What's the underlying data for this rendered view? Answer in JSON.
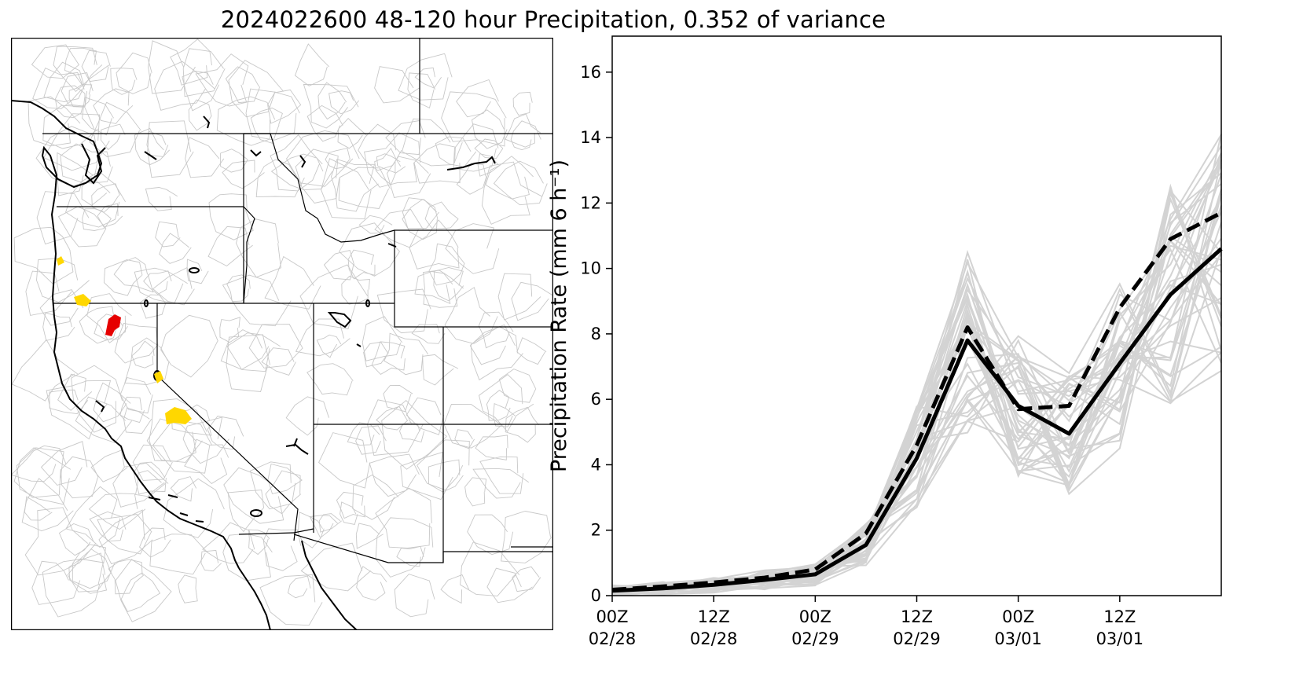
{
  "figure": {
    "title": "2024022600 48-120 hour Precipitation, 0.352 of variance"
  },
  "map": {
    "highlight_colors": {
      "red": "#e60000",
      "yellow": "#ffd700"
    }
  },
  "chart_data": {
    "type": "line",
    "ylabel": "Precipitation Rate (mm 6 h⁻¹)",
    "ylim": [
      0,
      17.1
    ],
    "yticks": [
      0,
      2,
      4,
      6,
      8,
      10,
      12,
      14,
      16
    ],
    "xlim_hours": [
      0,
      72
    ],
    "xticks": [
      {
        "hour": 0,
        "line1": "00Z",
        "line2": "02/28"
      },
      {
        "hour": 12,
        "line1": "12Z",
        "line2": "02/28"
      },
      {
        "hour": 24,
        "line1": "00Z",
        "line2": "02/29"
      },
      {
        "hour": 36,
        "line1": "12Z",
        "line2": "02/29"
      },
      {
        "hour": 48,
        "line1": "00Z",
        "line2": "03/01"
      },
      {
        "hour": 60,
        "line1": "12Z",
        "line2": "03/01"
      }
    ],
    "x_hours": [
      0,
      6,
      12,
      18,
      24,
      30,
      36,
      42,
      48,
      54,
      60,
      66,
      72
    ],
    "series": [
      {
        "role": "solid",
        "color": "#000000",
        "values": [
          0.15,
          0.22,
          0.33,
          0.48,
          0.65,
          1.55,
          4.2,
          7.8,
          5.8,
          4.95,
          7.1,
          9.2,
          10.6
        ]
      },
      {
        "role": "dashed",
        "color": "#000000",
        "values": [
          0.18,
          0.28,
          0.4,
          0.55,
          0.8,
          1.9,
          4.6,
          8.2,
          5.7,
          5.8,
          8.8,
          10.9,
          11.7
        ]
      }
    ],
    "ensemble_color": "#d3d3d3",
    "ensemble_members": 40
  }
}
